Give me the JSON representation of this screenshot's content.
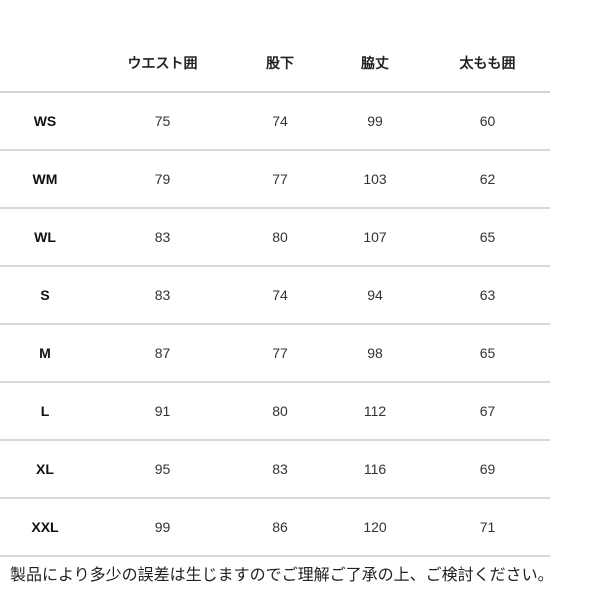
{
  "table": {
    "headers": [
      "",
      "ウエスト囲",
      "股下",
      "脇丈",
      "太もも囲"
    ],
    "rows": [
      [
        "WS",
        "75",
        "74",
        "99",
        "60"
      ],
      [
        "WM",
        "79",
        "77",
        "103",
        "62"
      ],
      [
        "WL",
        "83",
        "80",
        "107",
        "65"
      ],
      [
        "S",
        "83",
        "74",
        "94",
        "63"
      ],
      [
        "M",
        "87",
        "77",
        "98",
        "65"
      ],
      [
        "L",
        "91",
        "80",
        "112",
        "67"
      ],
      [
        "XL",
        "95",
        "83",
        "116",
        "69"
      ],
      [
        "XXL",
        "99",
        "86",
        "120",
        "71"
      ]
    ]
  },
  "note": "製品により多少の誤差は生じますのでご理解ご了承の上、ご検討ください。"
}
